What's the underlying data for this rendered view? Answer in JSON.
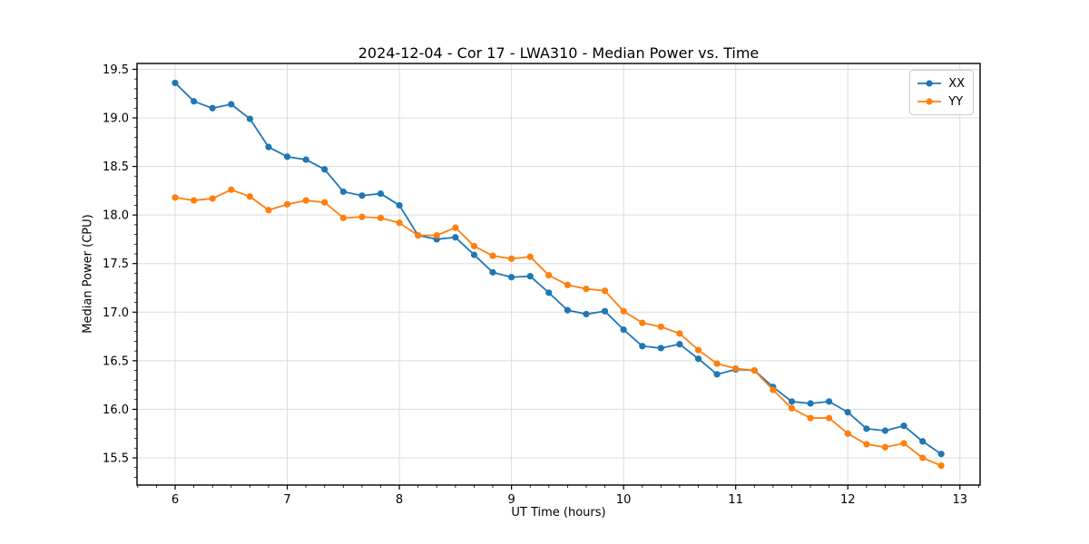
{
  "figure": {
    "background_color": "#ffffff",
    "axes_edge_color": "#000000",
    "grid_color": "#dcdcdc"
  },
  "chart_data": {
    "type": "line",
    "title": "2024-12-04 - Cor 17 - LWA310 - Median Power vs. Time",
    "xlabel": "UT Time (hours)",
    "ylabel": "Median Power (CPU)",
    "xlim": [
      5.66,
      13.18
    ],
    "ylim": [
      15.22,
      19.56
    ],
    "x_ticks": [
      6,
      7,
      8,
      9,
      10,
      11,
      12,
      13
    ],
    "y_ticks": [
      15.5,
      16.0,
      16.5,
      17.0,
      17.5,
      18.0,
      18.5,
      19.0,
      19.5
    ],
    "x_minor_per_major": 6,
    "y_minor_per_major": 5,
    "grid": true,
    "legend_position": "upper right",
    "marker": "circle",
    "x": [
      6.0,
      6.167,
      6.333,
      6.5,
      6.667,
      6.833,
      7.0,
      7.167,
      7.333,
      7.5,
      7.667,
      7.833,
      8.0,
      8.167,
      8.333,
      8.5,
      8.667,
      8.833,
      9.0,
      9.167,
      9.333,
      9.5,
      9.667,
      9.833,
      10.0,
      10.167,
      10.333,
      10.5,
      10.667,
      10.833,
      11.0,
      11.167,
      11.333,
      11.5,
      11.667,
      11.833,
      12.0,
      12.167,
      12.333,
      12.5,
      12.667,
      12.833
    ],
    "series": [
      {
        "name": "XX",
        "color": "#1f77b4",
        "values": [
          19.36,
          19.17,
          19.1,
          19.14,
          18.99,
          18.7,
          18.6,
          18.57,
          18.47,
          18.24,
          18.2,
          18.22,
          18.1,
          17.79,
          17.75,
          17.77,
          17.59,
          17.41,
          17.36,
          17.37,
          17.2,
          17.02,
          16.98,
          17.01,
          16.82,
          16.65,
          16.63,
          16.67,
          16.52,
          16.36,
          16.41,
          16.4,
          16.23,
          16.08,
          16.06,
          16.08,
          15.97,
          15.8,
          15.78,
          15.83,
          15.67,
          15.54
        ]
      },
      {
        "name": "YY",
        "color": "#ff7f0e",
        "values": [
          18.18,
          18.15,
          18.17,
          18.26,
          18.19,
          18.05,
          18.11,
          18.15,
          18.13,
          17.97,
          17.98,
          17.97,
          17.92,
          17.79,
          17.79,
          17.87,
          17.68,
          17.58,
          17.55,
          17.57,
          17.38,
          17.28,
          17.24,
          17.22,
          17.01,
          16.89,
          16.85,
          16.78,
          16.61,
          16.47,
          16.42,
          16.4,
          16.2,
          16.01,
          15.91,
          15.91,
          15.75,
          15.64,
          15.61,
          15.65,
          15.5,
          15.42
        ]
      }
    ]
  }
}
